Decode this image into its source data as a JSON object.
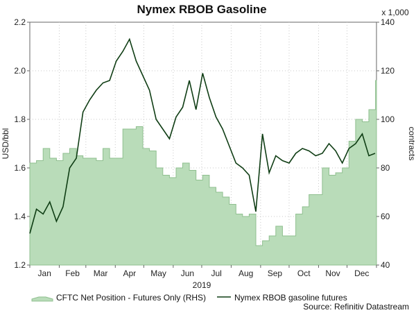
{
  "chart_data": {
    "type": "line",
    "title": "Nymex RBOB Gasoline",
    "xlabel": "2019",
    "ylabel": "USD/bbl",
    "y2label": "contracts",
    "y2_multiplier_label": "x 1,000",
    "source": "Source: Refinitiv Datastream",
    "x_tick_labels": [
      "Jan",
      "Feb",
      "Mar",
      "Apr",
      "May",
      "Jun",
      "Jul",
      "Aug",
      "Sep",
      "Oct",
      "Nov",
      "Dec"
    ],
    "ylim": [
      1.2,
      2.2
    ],
    "y_ticks": [
      "1.2",
      "1.4",
      "1.6",
      "1.8",
      "2.0",
      "2.2"
    ],
    "y2lim": [
      40,
      140
    ],
    "y2_ticks": [
      "40",
      "60",
      "80",
      "100",
      "120",
      "140"
    ],
    "grid": true,
    "legend_position": "bottom",
    "colors": {
      "area_fill": "#b9dcb9",
      "area_line": "#8fbf8f",
      "price_line": "#0f3d14"
    },
    "series": [
      {
        "name": "CFTC Net Position - Futures Only (RHS)",
        "type": "area",
        "axis": "right",
        "x": [
          "2019-01-01",
          "2019-01-08",
          "2019-01-15",
          "2019-01-22",
          "2019-01-29",
          "2019-02-05",
          "2019-02-12",
          "2019-02-19",
          "2019-02-26",
          "2019-03-05",
          "2019-03-12",
          "2019-03-19",
          "2019-03-26",
          "2019-04-02",
          "2019-04-09",
          "2019-04-16",
          "2019-04-23",
          "2019-04-30",
          "2019-05-07",
          "2019-05-14",
          "2019-05-21",
          "2019-05-28",
          "2019-06-04",
          "2019-06-11",
          "2019-06-18",
          "2019-06-25",
          "2019-07-02",
          "2019-07-09",
          "2019-07-16",
          "2019-07-23",
          "2019-07-30",
          "2019-08-06",
          "2019-08-13",
          "2019-08-20",
          "2019-08-27",
          "2019-09-03",
          "2019-09-10",
          "2019-09-17",
          "2019-09-24",
          "2019-10-01",
          "2019-10-08",
          "2019-10-15",
          "2019-10-22",
          "2019-10-29",
          "2019-11-05",
          "2019-11-12",
          "2019-11-19",
          "2019-11-26",
          "2019-12-03",
          "2019-12-10",
          "2019-12-17",
          "2019-12-24",
          "2019-12-31"
        ],
        "values": [
          82,
          83,
          88,
          84,
          83,
          86,
          88,
          85,
          84,
          84,
          83,
          88,
          84,
          84,
          96,
          96,
          97,
          88,
          87,
          80,
          77,
          76,
          80,
          82,
          79,
          75,
          77,
          72,
          70,
          68,
          65,
          61,
          60,
          61,
          48,
          50,
          52,
          56,
          52,
          52,
          61,
          64,
          69,
          69,
          80,
          77,
          78,
          80,
          91,
          100,
          99,
          104,
          116
        ]
      },
      {
        "name": "Nymex RBOB gasoline futures",
        "type": "line",
        "axis": "left",
        "x": [
          "2019-01-01",
          "2019-01-08",
          "2019-01-15",
          "2019-01-22",
          "2019-01-29",
          "2019-02-05",
          "2019-02-12",
          "2019-02-19",
          "2019-02-26",
          "2019-03-05",
          "2019-03-12",
          "2019-03-19",
          "2019-03-26",
          "2019-04-02",
          "2019-04-09",
          "2019-04-16",
          "2019-04-23",
          "2019-04-30",
          "2019-05-07",
          "2019-05-14",
          "2019-05-21",
          "2019-05-28",
          "2019-06-04",
          "2019-06-11",
          "2019-06-18",
          "2019-06-25",
          "2019-07-02",
          "2019-07-09",
          "2019-07-16",
          "2019-07-23",
          "2019-07-30",
          "2019-08-06",
          "2019-08-13",
          "2019-08-20",
          "2019-08-27",
          "2019-09-03",
          "2019-09-10",
          "2019-09-17",
          "2019-09-24",
          "2019-10-01",
          "2019-10-08",
          "2019-10-15",
          "2019-10-22",
          "2019-10-29",
          "2019-11-05",
          "2019-11-12",
          "2019-11-19",
          "2019-11-26",
          "2019-12-03",
          "2019-12-10",
          "2019-12-17",
          "2019-12-24",
          "2019-12-31"
        ],
        "values": [
          1.33,
          1.43,
          1.41,
          1.46,
          1.38,
          1.44,
          1.6,
          1.64,
          1.83,
          1.88,
          1.92,
          1.95,
          1.96,
          2.04,
          2.08,
          2.13,
          2.04,
          1.98,
          1.92,
          1.8,
          1.76,
          1.72,
          1.81,
          1.85,
          1.96,
          1.84,
          1.99,
          1.89,
          1.81,
          1.76,
          1.69,
          1.62,
          1.6,
          1.57,
          1.42,
          1.74,
          1.58,
          1.65,
          1.63,
          1.62,
          1.66,
          1.68,
          1.67,
          1.65,
          1.66,
          1.7,
          1.67,
          1.62,
          1.68,
          1.7,
          1.74,
          1.65,
          1.66
        ]
      }
    ]
  }
}
